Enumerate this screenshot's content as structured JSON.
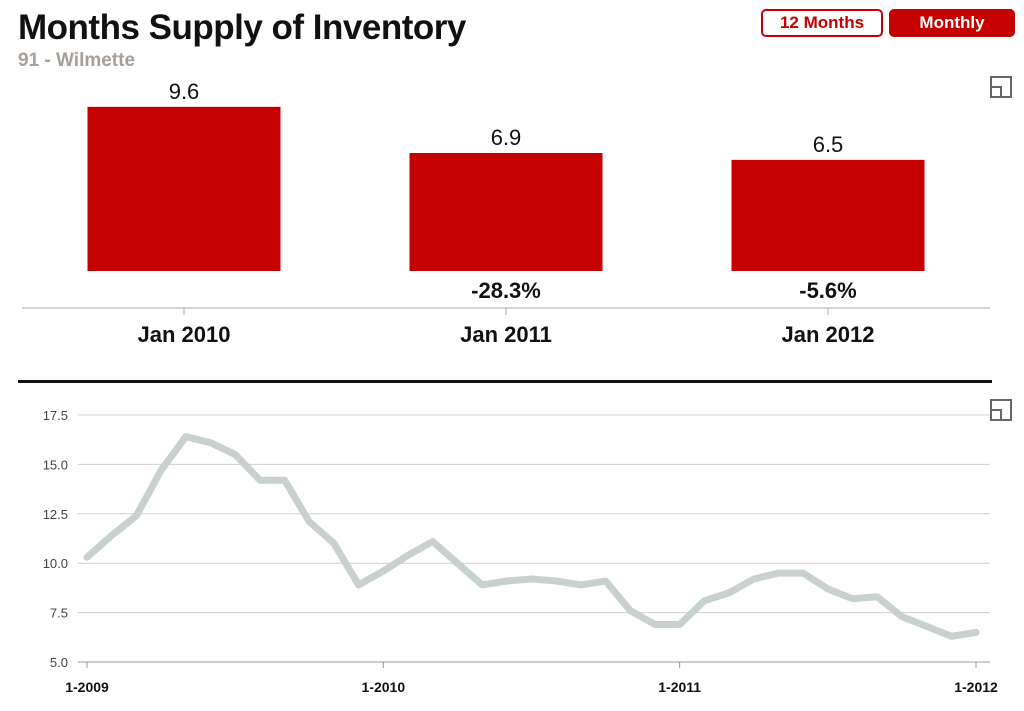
{
  "header": {
    "title": "Months Supply of Inventory",
    "subtitle": "91 - Wilmette"
  },
  "controls": {
    "twelve_months_label": "12 Months",
    "monthly_label": "Monthly",
    "active": "Monthly"
  },
  "icons": {
    "top_expand": "expand-icon",
    "bottom_expand": "expand-icon"
  },
  "colors": {
    "accent": "#c40000",
    "line": "#c8d1d0"
  },
  "chart_data": [
    {
      "type": "bar",
      "categories": [
        "Jan 2010",
        "Jan 2011",
        "Jan 2012"
      ],
      "values": [
        9.6,
        6.9,
        6.5
      ],
      "value_labels": [
        "9.6",
        "6.9",
        "6.5"
      ],
      "change_labels": [
        "",
        "-28.3%",
        "-5.6%"
      ],
      "title": "",
      "xlabel": "",
      "ylabel": "",
      "grid": false
    },
    {
      "type": "line",
      "x": [
        "1-2009",
        "2-2009",
        "3-2009",
        "4-2009",
        "5-2009",
        "6-2009",
        "7-2009",
        "8-2009",
        "9-2009",
        "10-2009",
        "11-2009",
        "12-2009",
        "1-2010",
        "2-2010",
        "3-2010",
        "4-2010",
        "5-2010",
        "6-2010",
        "7-2010",
        "8-2010",
        "9-2010",
        "10-2010",
        "11-2010",
        "12-2010",
        "1-2011",
        "2-2011",
        "3-2011",
        "4-2011",
        "5-2011",
        "6-2011",
        "7-2011",
        "8-2011",
        "9-2011",
        "10-2011",
        "11-2011",
        "12-2011",
        "1-2012"
      ],
      "values": [
        10.3,
        11.4,
        12.4,
        14.7,
        16.4,
        16.1,
        15.5,
        14.2,
        14.2,
        12.1,
        11.0,
        8.9,
        9.6,
        10.4,
        11.1,
        10.0,
        8.9,
        9.1,
        9.2,
        9.1,
        8.9,
        9.1,
        7.6,
        6.9,
        6.9,
        8.1,
        8.5,
        9.2,
        9.5,
        9.5,
        8.7,
        8.2,
        8.3,
        7.3,
        6.8,
        6.3,
        6.5
      ],
      "x_tick_labels": [
        "1-2009",
        "1-2010",
        "1-2011",
        "1-2012"
      ],
      "y_tick_labels": [
        "5.0",
        "7.5",
        "10.0",
        "12.5",
        "15.0",
        "17.5"
      ],
      "ylim": [
        5.0,
        17.5
      ],
      "grid": true,
      "legend": "none"
    }
  ]
}
